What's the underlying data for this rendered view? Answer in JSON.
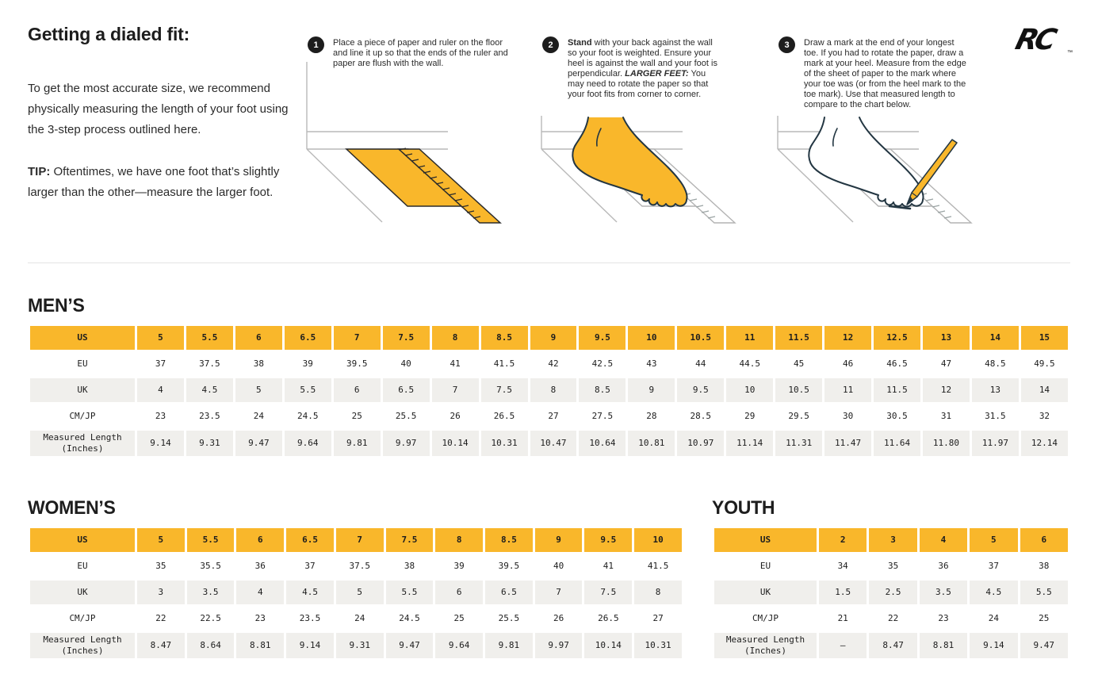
{
  "colors": {
    "accent": "#F9B72B",
    "stripe": "#F0EFEC",
    "ink": "#1d1d1d"
  },
  "logo": {
    "text": "RC",
    "tm": "™"
  },
  "intro": {
    "heading": "Getting a dialed fit:",
    "paragraph": "To get the most accurate size, we recommend physically measuring the length of your foot using the 3-step process outlined here.",
    "tip_label": "TIP:",
    "tip_text": " Oftentimes, we have one foot that’s slightly larger than the other—measure the larger foot."
  },
  "steps": [
    {
      "number": "1",
      "text": "Place a piece of paper and ruler on the floor and line it up so that the ends of the ruler and paper are flush with the wall."
    },
    {
      "number": "2",
      "bold": "Stand",
      "text": " with your back against the wall so your foot is weighted. Ensure your heel is against the wall and your foot is perpendicular. ",
      "bold_italic": "LARGER FEET:",
      "text2": " You may need to rotate the paper so that your foot fits from corner to corner."
    },
    {
      "number": "3",
      "text": "Draw a mark at the end of your longest toe. If you had to rotate the paper, draw a mark at your heel. Measure from the edge of the sheet of paper to the mark where your toe was (or from the heel mark to the toe mark). Use that measured length to compare to the chart below."
    }
  ],
  "tables": {
    "mens": {
      "title": "MEN’S",
      "rows": [
        {
          "label": "US",
          "values": [
            "5",
            "5.5",
            "6",
            "6.5",
            "7",
            "7.5",
            "8",
            "8.5",
            "9",
            "9.5",
            "10",
            "10.5",
            "11",
            "11.5",
            "12",
            "12.5",
            "13",
            "14",
            "15"
          ]
        },
        {
          "label": "EU",
          "values": [
            "37",
            "37.5",
            "38",
            "39",
            "39.5",
            "40",
            "41",
            "41.5",
            "42",
            "42.5",
            "43",
            "44",
            "44.5",
            "45",
            "46",
            "46.5",
            "47",
            "48.5",
            "49.5"
          ]
        },
        {
          "label": "UK",
          "values": [
            "4",
            "4.5",
            "5",
            "5.5",
            "6",
            "6.5",
            "7",
            "7.5",
            "8",
            "8.5",
            "9",
            "9.5",
            "10",
            "10.5",
            "11",
            "11.5",
            "12",
            "13",
            "14"
          ]
        },
        {
          "label": "CM/JP",
          "values": [
            "23",
            "23.5",
            "24",
            "24.5",
            "25",
            "25.5",
            "26",
            "26.5",
            "27",
            "27.5",
            "28",
            "28.5",
            "29",
            "29.5",
            "30",
            "30.5",
            "31",
            "31.5",
            "32"
          ]
        },
        {
          "label": "Measured Length (Inches)",
          "values": [
            "9.14",
            "9.31",
            "9.47",
            "9.64",
            "9.81",
            "9.97",
            "10.14",
            "10.31",
            "10.47",
            "10.64",
            "10.81",
            "10.97",
            "11.14",
            "11.31",
            "11.47",
            "11.64",
            "11.80",
            "11.97",
            "12.14"
          ]
        }
      ]
    },
    "womens": {
      "title": "WOMEN’S",
      "rows": [
        {
          "label": "US",
          "values": [
            "5",
            "5.5",
            "6",
            "6.5",
            "7",
            "7.5",
            "8",
            "8.5",
            "9",
            "9.5",
            "10"
          ]
        },
        {
          "label": "EU",
          "values": [
            "35",
            "35.5",
            "36",
            "37",
            "37.5",
            "38",
            "39",
            "39.5",
            "40",
            "41",
            "41.5"
          ]
        },
        {
          "label": "UK",
          "values": [
            "3",
            "3.5",
            "4",
            "4.5",
            "5",
            "5.5",
            "6",
            "6.5",
            "7",
            "7.5",
            "8"
          ]
        },
        {
          "label": "CM/JP",
          "values": [
            "22",
            "22.5",
            "23",
            "23.5",
            "24",
            "24.5",
            "25",
            "25.5",
            "26",
            "26.5",
            "27"
          ]
        },
        {
          "label": "Measured Length (Inches)",
          "values": [
            "8.47",
            "8.64",
            "8.81",
            "9.14",
            "9.31",
            "9.47",
            "9.64",
            "9.81",
            "9.97",
            "10.14",
            "10.31"
          ]
        }
      ]
    },
    "youth": {
      "title": "YOUTH",
      "rows": [
        {
          "label": "US",
          "values": [
            "2",
            "3",
            "4",
            "5",
            "6"
          ]
        },
        {
          "label": "EU",
          "values": [
            "34",
            "35",
            "36",
            "37",
            "38"
          ]
        },
        {
          "label": "UK",
          "values": [
            "1.5",
            "2.5",
            "3.5",
            "4.5",
            "5.5"
          ]
        },
        {
          "label": "CM/JP",
          "values": [
            "21",
            "22",
            "23",
            "24",
            "25"
          ]
        },
        {
          "label": "Measured Length (Inches)",
          "values": [
            "–",
            "8.47",
            "8.81",
            "9.14",
            "9.47"
          ]
        }
      ]
    }
  }
}
